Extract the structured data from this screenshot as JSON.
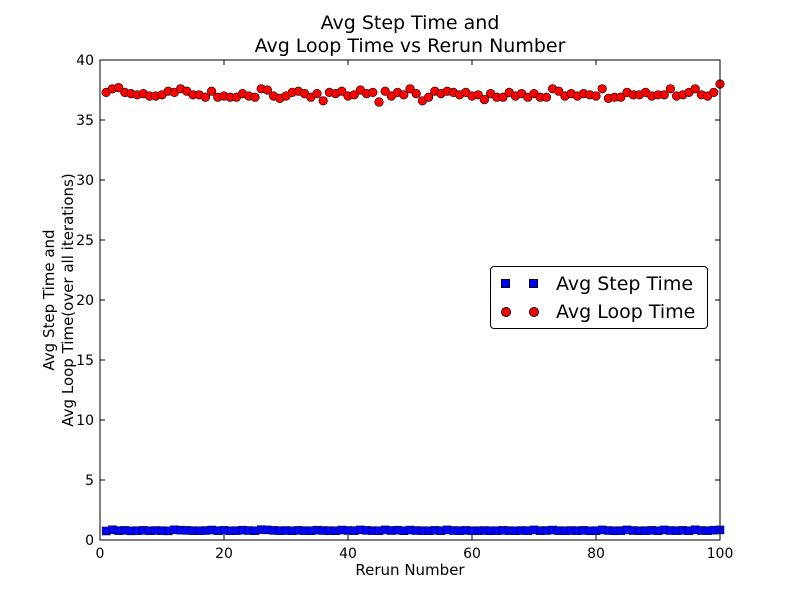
{
  "chart_data": {
    "type": "scatter",
    "title_line1": "Avg Step Time and",
    "title_line2": "Avg Loop Time vs Rerun Number",
    "xlabel": "Rerun Number",
    "ylabel_line1": "Avg Step Time and",
    "ylabel_line2": "Avg Loop Time(over all iterations)",
    "xlim": [
      0,
      100
    ],
    "ylim": [
      0,
      40
    ],
    "x_ticks": [
      0,
      20,
      40,
      60,
      80,
      100
    ],
    "y_ticks": [
      0,
      5,
      10,
      15,
      20,
      25,
      30,
      35,
      40
    ],
    "grid": false,
    "legend_position": "center-right",
    "x": [
      1,
      2,
      3,
      4,
      5,
      6,
      7,
      8,
      9,
      10,
      11,
      12,
      13,
      14,
      15,
      16,
      17,
      18,
      19,
      20,
      21,
      22,
      23,
      24,
      25,
      26,
      27,
      28,
      29,
      30,
      31,
      32,
      33,
      34,
      35,
      36,
      37,
      38,
      39,
      40,
      41,
      42,
      43,
      44,
      45,
      46,
      47,
      48,
      49,
      50,
      51,
      52,
      53,
      54,
      55,
      56,
      57,
      58,
      59,
      60,
      61,
      62,
      63,
      64,
      65,
      66,
      67,
      68,
      69,
      70,
      71,
      72,
      73,
      74,
      75,
      76,
      77,
      78,
      79,
      80,
      81,
      82,
      83,
      84,
      85,
      86,
      87,
      88,
      89,
      90,
      91,
      92,
      93,
      94,
      95,
      96,
      97,
      98,
      99,
      100
    ],
    "series": [
      {
        "name": "Avg Step Time",
        "marker": "square",
        "color": "#0000ff",
        "values": [
          0.75,
          0.85,
          0.78,
          0.8,
          0.76,
          0.78,
          0.8,
          0.77,
          0.79,
          0.78,
          0.76,
          0.85,
          0.82,
          0.8,
          0.78,
          0.77,
          0.79,
          0.83,
          0.78,
          0.8,
          0.77,
          0.78,
          0.82,
          0.79,
          0.77,
          0.86,
          0.84,
          0.8,
          0.78,
          0.79,
          0.77,
          0.8,
          0.78,
          0.77,
          0.82,
          0.79,
          0.78,
          0.77,
          0.83,
          0.79,
          0.78,
          0.84,
          0.8,
          0.78,
          0.77,
          0.84,
          0.79,
          0.82,
          0.77,
          0.83,
          0.79,
          0.78,
          0.77,
          0.8,
          0.78,
          0.84,
          0.79,
          0.78,
          0.8,
          0.77,
          0.78,
          0.79,
          0.77,
          0.78,
          0.8,
          0.78,
          0.77,
          0.79,
          0.78,
          0.84,
          0.78,
          0.79,
          0.83,
          0.78,
          0.77,
          0.79,
          0.78,
          0.8,
          0.77,
          0.78,
          0.84,
          0.79,
          0.77,
          0.78,
          0.84,
          0.79,
          0.77,
          0.78,
          0.8,
          0.77,
          0.84,
          0.79,
          0.78,
          0.8,
          0.77,
          0.85,
          0.79,
          0.78,
          0.82,
          0.84
        ]
      },
      {
        "name": "Avg Loop Time",
        "marker": "circle",
        "color": "#ff0000",
        "values": [
          37.3,
          37.6,
          37.7,
          37.3,
          37.2,
          37.1,
          37.2,
          37.0,
          37.0,
          37.1,
          37.4,
          37.3,
          37.6,
          37.4,
          37.1,
          37.1,
          36.9,
          37.4,
          36.9,
          37.0,
          36.9,
          36.9,
          37.2,
          37.0,
          36.9,
          37.6,
          37.5,
          37.0,
          36.8,
          37.0,
          37.3,
          37.4,
          37.2,
          36.9,
          37.2,
          36.6,
          37.3,
          37.2,
          37.4,
          37.0,
          37.1,
          37.5,
          37.2,
          37.3,
          36.5,
          37.4,
          37.0,
          37.3,
          37.1,
          37.6,
          37.2,
          36.6,
          36.9,
          37.4,
          37.2,
          37.4,
          37.3,
          37.1,
          37.3,
          37.0,
          37.1,
          36.7,
          37.2,
          36.9,
          36.9,
          37.3,
          37.0,
          37.2,
          36.9,
          37.2,
          36.9,
          36.9,
          37.6,
          37.4,
          37.0,
          37.2,
          37.0,
          37.2,
          37.1,
          37.0,
          37.6,
          36.8,
          36.9,
          36.9,
          37.3,
          37.1,
          37.1,
          37.3,
          37.0,
          37.1,
          37.1,
          37.6,
          37.0,
          37.1,
          37.3,
          37.6,
          37.1,
          37.0,
          37.3,
          38.0
        ]
      }
    ]
  }
}
